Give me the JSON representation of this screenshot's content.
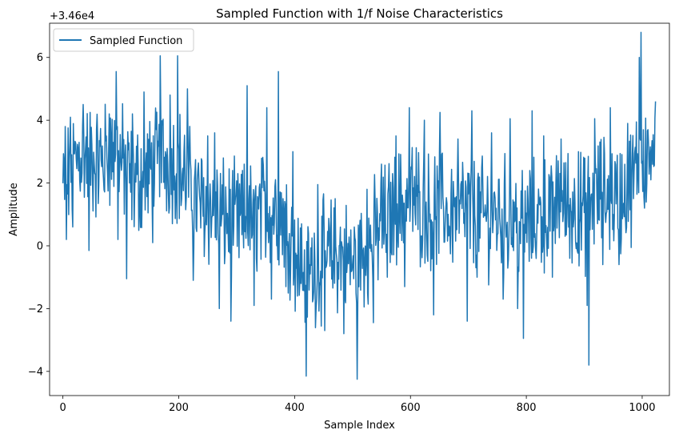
{
  "chart_data": {
    "type": "line",
    "title": "Sampled Function with 1/f Noise Characteristics",
    "xlabel": "Sample Index",
    "ylabel": "Amplitude",
    "offset_label": "+3.46e4",
    "xlim": [
      -23,
      1047
    ],
    "ylim": [
      -4.77,
      7.09
    ],
    "xticks": [
      0,
      200,
      400,
      600,
      800,
      1000
    ],
    "yticks": [
      -4,
      -2,
      0,
      2,
      4,
      6
    ],
    "legend_position": "upper-left",
    "grid": false,
    "series": [
      {
        "name": "Sampled Function",
        "color": "#1f77b4",
        "anchors": [
          [
            0,
            1.8
          ],
          [
            10,
            2.2
          ],
          [
            30,
            3.0
          ],
          [
            60,
            2.6
          ],
          [
            90,
            3.1
          ],
          [
            120,
            2.0
          ],
          [
            150,
            2.3
          ],
          [
            170,
            2.8
          ],
          [
            200,
            2.6
          ],
          [
            230,
            1.5
          ],
          [
            260,
            1.1
          ],
          [
            300,
            0.7
          ],
          [
            330,
            0.9
          ],
          [
            360,
            1.3
          ],
          [
            380,
            1.0
          ],
          [
            400,
            -0.1
          ],
          [
            420,
            -0.9
          ],
          [
            450,
            -0.4
          ],
          [
            480,
            -0.3
          ],
          [
            500,
            -0.6
          ],
          [
            530,
            0.0
          ],
          [
            560,
            0.9
          ],
          [
            600,
            1.6
          ],
          [
            630,
            1.1
          ],
          [
            660,
            1.2
          ],
          [
            700,
            1.1
          ],
          [
            730,
            0.9
          ],
          [
            760,
            1.0
          ],
          [
            800,
            0.7
          ],
          [
            830,
            1.0
          ],
          [
            860,
            1.4
          ],
          [
            900,
            1.0
          ],
          [
            930,
            1.7
          ],
          [
            960,
            1.5
          ],
          [
            980,
            1.9
          ],
          [
            1000,
            3.0
          ],
          [
            1023,
            3.3
          ]
        ],
        "peaks": [
          [
            4,
            3.8
          ],
          [
            6,
            0.2
          ],
          [
            12,
            3.3
          ],
          [
            17,
            0.6
          ],
          [
            35,
            4.5
          ],
          [
            45,
            -0.15
          ],
          [
            80,
            4.2
          ],
          [
            92,
            5.55
          ],
          [
            95,
            0.2
          ],
          [
            110,
            -1.05
          ],
          [
            120,
            4.2
          ],
          [
            140,
            4.9
          ],
          [
            155,
            0.1
          ],
          [
            168,
            6.05
          ],
          [
            185,
            4.8
          ],
          [
            198,
            6.05
          ],
          [
            205,
            1.5
          ],
          [
            215,
            5.0
          ],
          [
            225,
            -1.1
          ],
          [
            250,
            3.5
          ],
          [
            262,
            3.6
          ],
          [
            270,
            -2.0
          ],
          [
            290,
            -2.4
          ],
          [
            318,
            5.1
          ],
          [
            330,
            -1.9
          ],
          [
            352,
            4.4
          ],
          [
            360,
            -1.7
          ],
          [
            372,
            5.55
          ],
          [
            385,
            -1.3
          ],
          [
            397,
            3.0
          ],
          [
            405,
            -1.6
          ],
          [
            420,
            -4.15
          ],
          [
            440,
            1.95
          ],
          [
            452,
            -2.7
          ],
          [
            470,
            1.5
          ],
          [
            485,
            -2.8
          ],
          [
            508,
            -4.25
          ],
          [
            525,
            1.8
          ],
          [
            536,
            -2.45
          ],
          [
            550,
            2.6
          ],
          [
            560,
            -1.0
          ],
          [
            575,
            3.5
          ],
          [
            590,
            -1.3
          ],
          [
            598,
            4.4
          ],
          [
            615,
            1.7
          ],
          [
            624,
            4.0
          ],
          [
            640,
            -2.2
          ],
          [
            651,
            4.25
          ],
          [
            668,
            0.5
          ],
          [
            682,
            3.4
          ],
          [
            698,
            -2.4
          ],
          [
            706,
            4.3
          ],
          [
            715,
            -1.0
          ],
          [
            740,
            3.6
          ],
          [
            760,
            -1.7
          ],
          [
            772,
            4.05
          ],
          [
            785,
            -2.0
          ],
          [
            795,
            -2.95
          ],
          [
            810,
            4.3
          ],
          [
            818,
            0.4
          ],
          [
            830,
            3.5
          ],
          [
            845,
            -1.0
          ],
          [
            860,
            3.4
          ],
          [
            875,
            -0.4
          ],
          [
            890,
            3.0
          ],
          [
            905,
            -1.9
          ],
          [
            908,
            -3.8
          ],
          [
            918,
            4.05
          ],
          [
            932,
            -0.6
          ],
          [
            945,
            4.4
          ],
          [
            960,
            -0.6
          ],
          [
            975,
            3.9
          ],
          [
            985,
            1.5
          ],
          [
            995,
            6.0
          ],
          [
            998,
            6.8
          ],
          [
            1004,
            1.2
          ],
          [
            1010,
            3.7
          ],
          [
            1015,
            2.1
          ],
          [
            1023,
            4.6
          ]
        ],
        "length": 1024
      }
    ]
  }
}
